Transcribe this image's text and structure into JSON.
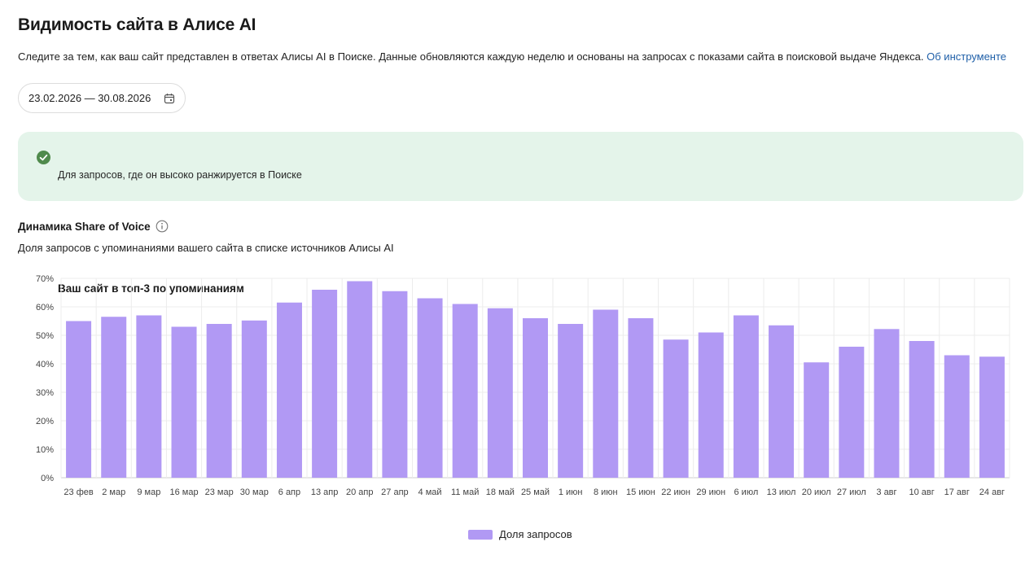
{
  "header": {
    "title": "Видимость сайта в Алисе AI",
    "description": "Следите за тем, как ваш сайт представлен в ответах Алисы AI в Поиске. Данные обновляются каждую неделю и основаны на запросах с показами сайта в поисковой выдаче Яндекса.",
    "link_label": "Об инструменте"
  },
  "date_range": {
    "value": "23.02.2026 — 30.08.2026",
    "icon": "calendar-icon"
  },
  "alert": {
    "icon": "check-circle-icon",
    "title": "Ваш сайт в топ-3 по упоминаниям",
    "subtitle": "Для запросов, где он высоко ранжируется в Поиске",
    "color": "#e4f4ea",
    "icon_color": "#4f8a4c"
  },
  "chart_section": {
    "title": "Динамика Share of Voice",
    "info_icon": "info-icon",
    "subtitle": "Доля запросов с упоминаниями вашего сайта в списке источников Алисы AI"
  },
  "chart_data": {
    "type": "bar",
    "categories": [
      "23 фев",
      "2 мар",
      "9 мар",
      "16 мар",
      "23 мар",
      "30 мар",
      "6 апр",
      "13 апр",
      "20 апр",
      "27 апр",
      "4 май",
      "11 май",
      "18 май",
      "25 май",
      "1 июн",
      "8 июн",
      "15 июн",
      "22 июн",
      "29 июн",
      "6 июл",
      "13 июл",
      "20 июл",
      "27 июл",
      "3 авг",
      "10 авг",
      "17 авг",
      "24 авг"
    ],
    "series": [
      {
        "name": "Доля запросов",
        "values": [
          55,
          56.5,
          57,
          53,
          54,
          55.2,
          61.5,
          66,
          69,
          65.5,
          63,
          61,
          59.5,
          56,
          54,
          59,
          56,
          48.5,
          51,
          57,
          53.5,
          40.5,
          46,
          52.2,
          48,
          43,
          42.5
        ]
      }
    ],
    "ylim": [
      0,
      70
    ],
    "yticks": [
      "0%",
      "10%",
      "20%",
      "30%",
      "40%",
      "50%",
      "60%",
      "70%"
    ],
    "grid": true,
    "legend_position": "bottom-center",
    "bar_color": "#b199f4"
  }
}
